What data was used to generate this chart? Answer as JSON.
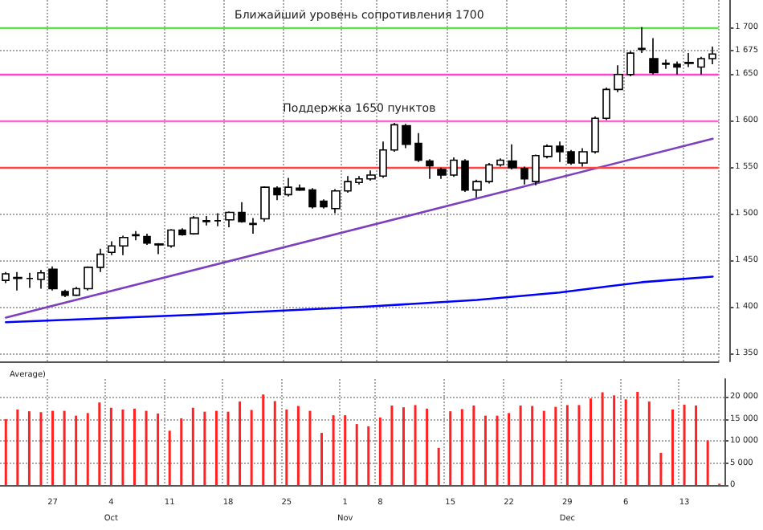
{
  "chart_data": [
    {
      "type": "candlestick",
      "categories": [
        null,
        null,
        null,
        null,
        null,
        null,
        null,
        null,
        null,
        null,
        null,
        null,
        null,
        null,
        null,
        null,
        null,
        null,
        null,
        null,
        null,
        null,
        null,
        null,
        null,
        null,
        null,
        null,
        null,
        null,
        null,
        null,
        null,
        null,
        null,
        null,
        null,
        null,
        null,
        null,
        null,
        null,
        null,
        null,
        null,
        null,
        null,
        null,
        null,
        null,
        null,
        null,
        null,
        null,
        null,
        null,
        null,
        null,
        null,
        null,
        null
      ],
      "ohlc": [
        [
          1428,
          1437,
          1425,
          1435
        ],
        [
          1430,
          1437,
          1417,
          1431
        ],
        [
          1430,
          1436,
          1420,
          1430
        ],
        [
          1429,
          1439,
          1419,
          1436
        ],
        [
          1440,
          1443,
          1417,
          1419
        ],
        [
          1416,
          1418,
          1410,
          1412
        ],
        [
          1412,
          1421,
          1411,
          1419
        ],
        [
          1419,
          1443,
          1417,
          1442
        ],
        [
          1442,
          1462,
          1437,
          1456
        ],
        [
          1458,
          1470,
          1455,
          1465
        ],
        [
          1465,
          1476,
          1455,
          1474
        ],
        [
          1476,
          1481,
          1471,
          1477
        ],
        [
          1475,
          1478,
          1466,
          1468
        ],
        [
          1467,
          1468,
          1456,
          1466
        ],
        [
          1465,
          1483,
          1463,
          1482
        ],
        [
          1482,
          1484,
          1476,
          1477
        ],
        [
          1478,
          1497,
          1477,
          1495
        ],
        [
          1492,
          1497,
          1487,
          1491
        ],
        [
          1492,
          1500,
          1486,
          1492
        ],
        [
          1493,
          1502,
          1485,
          1501
        ],
        [
          1501,
          1512,
          1490,
          1491
        ],
        [
          1488,
          1495,
          1478,
          1489
        ],
        [
          1494,
          1529,
          1491,
          1528
        ],
        [
          1527,
          1529,
          1514,
          1520
        ],
        [
          1520,
          1538,
          1518,
          1528
        ],
        [
          1527,
          1531,
          1524,
          1525
        ],
        [
          1525,
          1527,
          1505,
          1507
        ],
        [
          1513,
          1515,
          1505,
          1507
        ],
        [
          1505,
          1526,
          1500,
          1524
        ],
        [
          1524,
          1540,
          1522,
          1534
        ],
        [
          1533,
          1540,
          1531,
          1537
        ],
        [
          1537,
          1546,
          1535,
          1541
        ],
        [
          1540,
          1577,
          1538,
          1568
        ],
        [
          1568,
          1597,
          1566,
          1595
        ],
        [
          1594,
          1596,
          1570,
          1574
        ],
        [
          1575,
          1586,
          1555,
          1557
        ],
        [
          1556,
          1558,
          1537,
          1551
        ],
        [
          1547,
          1549,
          1537,
          1541
        ],
        [
          1541,
          1560,
          1539,
          1557
        ],
        [
          1556,
          1558,
          1523,
          1525
        ],
        [
          1525,
          1536,
          1517,
          1534
        ],
        [
          1534,
          1554,
          1532,
          1552
        ],
        [
          1552,
          1559,
          1550,
          1557
        ],
        [
          1556,
          1574,
          1547,
          1549
        ],
        [
          1548,
          1550,
          1531,
          1537
        ],
        [
          1534,
          1563,
          1530,
          1562
        ],
        [
          1561,
          1574,
          1559,
          1572
        ],
        [
          1572,
          1577,
          1555,
          1566
        ],
        [
          1566,
          1568,
          1552,
          1554
        ],
        [
          1554,
          1570,
          1550,
          1566
        ],
        [
          1566,
          1604,
          1564,
          1602
        ],
        [
          1602,
          1635,
          1600,
          1633
        ],
        [
          1633,
          1659,
          1630,
          1649
        ],
        [
          1649,
          1674,
          1647,
          1672
        ],
        [
          1677,
          1700,
          1672,
          1676
        ],
        [
          1666,
          1688,
          1649,
          1651
        ],
        [
          1661,
          1665,
          1655,
          1660
        ],
        [
          1660,
          1663,
          1649,
          1657
        ],
        [
          1662,
          1672,
          1657,
          1661
        ],
        [
          1657,
          1668,
          1649,
          1666
        ],
        [
          1666,
          1679,
          1660,
          1671
        ]
      ],
      "series": [
        {
          "type": "line",
          "color": "#7b3fbf",
          "values": [
            1388,
            null,
            null,
            null,
            null,
            null,
            null,
            null,
            null,
            null,
            null,
            null,
            null,
            null,
            null,
            null,
            null,
            null,
            null,
            null,
            null,
            null,
            null,
            null,
            null,
            null,
            null,
            null,
            null,
            null,
            null,
            null,
            null,
            null,
            null,
            null,
            null,
            null,
            null,
            null,
            null,
            null,
            null,
            null,
            null,
            null,
            null,
            null,
            null,
            null,
            null,
            null,
            null,
            null,
            null,
            null,
            null,
            null,
            null,
            null,
            1580
          ]
        },
        {
          "type": "line",
          "color": "#0000ff",
          "values": [
            1383,
            null,
            null,
            null,
            null,
            null,
            null,
            null,
            null,
            null,
            null,
            null,
            null,
            null,
            null,
            null,
            1391,
            null,
            null,
            null,
            null,
            null,
            null,
            null,
            null,
            null,
            null,
            null,
            null,
            null,
            null,
            1400,
            null,
            null,
            null,
            null,
            null,
            null,
            null,
            null,
            1407,
            null,
            null,
            null,
            null,
            null,
            null,
            1415,
            null,
            null,
            null,
            null,
            null,
            null,
            1426,
            null,
            null,
            null,
            null,
            null,
            1432
          ]
        }
      ],
      "ylim": [
        1341,
        1729
      ],
      "yticks": [
        {
          "value": 1350,
          "label": "1 350"
        },
        {
          "value": 1400,
          "label": "1 400"
        },
        {
          "value": 1450,
          "label": "1 450"
        },
        {
          "value": 1500,
          "label": "1 500"
        },
        {
          "value": 1550,
          "label": "1 550"
        },
        {
          "value": 1600,
          "label": "1 600"
        },
        {
          "value": 1650,
          "label": "1 650"
        },
        {
          "value": 1675,
          "label": "1 675"
        },
        {
          "value": 1700,
          "label": "1 700"
        }
      ],
      "ref_lines": [
        {
          "axis": "y",
          "value": 1700,
          "label": "Ближайший уровень сопротивления 1700",
          "color": "#66dd55"
        },
        {
          "axis": "y",
          "value": 1650,
          "color": "#ff44cc"
        },
        {
          "axis": "y",
          "value": 1600,
          "label": "Поддержка 1650 пунктов",
          "color": "#ff66cc"
        },
        {
          "axis": "y",
          "value": 1550,
          "color": "#ff4444"
        }
      ],
      "grid": true,
      "tick_labels": "y",
      "line_style": "solid"
    },
    {
      "type": "bar",
      "title": "Average)",
      "categories": [
        null,
        null,
        null,
        null,
        "27",
        null,
        null,
        null,
        null,
        "4\nOct",
        null,
        null,
        null,
        null,
        "11",
        null,
        null,
        null,
        null,
        "18",
        null,
        null,
        null,
        null,
        "25",
        null,
        null,
        null,
        null,
        "1\nNov",
        null,
        null,
        "8",
        null,
        null,
        null,
        null,
        null,
        "15",
        null,
        null,
        null,
        null,
        "22",
        null,
        null,
        null,
        null,
        "29\nDec",
        null,
        null,
        null,
        null,
        "6",
        null,
        null,
        null,
        null,
        "13",
        null,
        null,
        null
      ],
      "values": [
        14900,
        17100,
        16700,
        16500,
        16800,
        16800,
        15700,
        16300,
        18700,
        17500,
        17100,
        17300,
        16800,
        16200,
        12300,
        15100,
        17500,
        16600,
        16800,
        16600,
        18900,
        17000,
        20500,
        19000,
        17100,
        17900,
        16800,
        11800,
        15800,
        15800,
        13800,
        13300,
        15300,
        18000,
        17600,
        18100,
        17300,
        8400,
        16700,
        17200,
        18000,
        15700,
        15700,
        16300,
        18000,
        17900,
        16800,
        17700,
        18100,
        18100,
        19600,
        21000,
        20300,
        19400,
        21100,
        18900,
        7300,
        17100,
        18200,
        18000,
        10100,
        300
      ],
      "color": "#ff2222",
      "ylim": [
        0,
        24000
      ],
      "yticks": [
        0,
        {
          "value": 5000,
          "label": "5 000"
        },
        {
          "value": 10000,
          "label": "10 000"
        },
        {
          "value": 15000,
          "label": "15 000"
        },
        {
          "value": 20000,
          "label": "20 000"
        }
      ],
      "grid": true
    }
  ]
}
